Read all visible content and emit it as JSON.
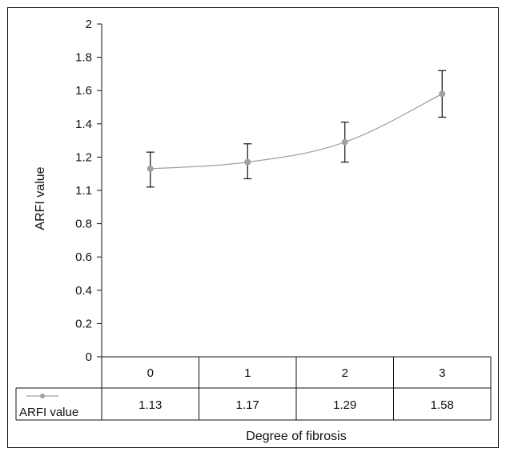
{
  "chart_data": {
    "type": "line",
    "categories": [
      "0",
      "1",
      "2",
      "3"
    ],
    "series": [
      {
        "name": "ARFI value",
        "values": [
          1.13,
          1.17,
          1.29,
          1.58
        ],
        "error_high": [
          1.23,
          1.28,
          1.41,
          1.72
        ],
        "error_low": [
          1.02,
          1.07,
          1.17,
          1.44
        ],
        "color": "#a0a0a0"
      }
    ],
    "y_ticks": [
      "2",
      "1.8",
      "1.6",
      "1.4",
      "1.2",
      "1.1",
      "0.8",
      "0.6",
      "0.4",
      "0.2",
      "0"
    ],
    "ylim": [
      0,
      2
    ],
    "xlabel": "Degree of fibrosis",
    "ylabel": "ARFI value",
    "data_table": true,
    "grid": false
  }
}
